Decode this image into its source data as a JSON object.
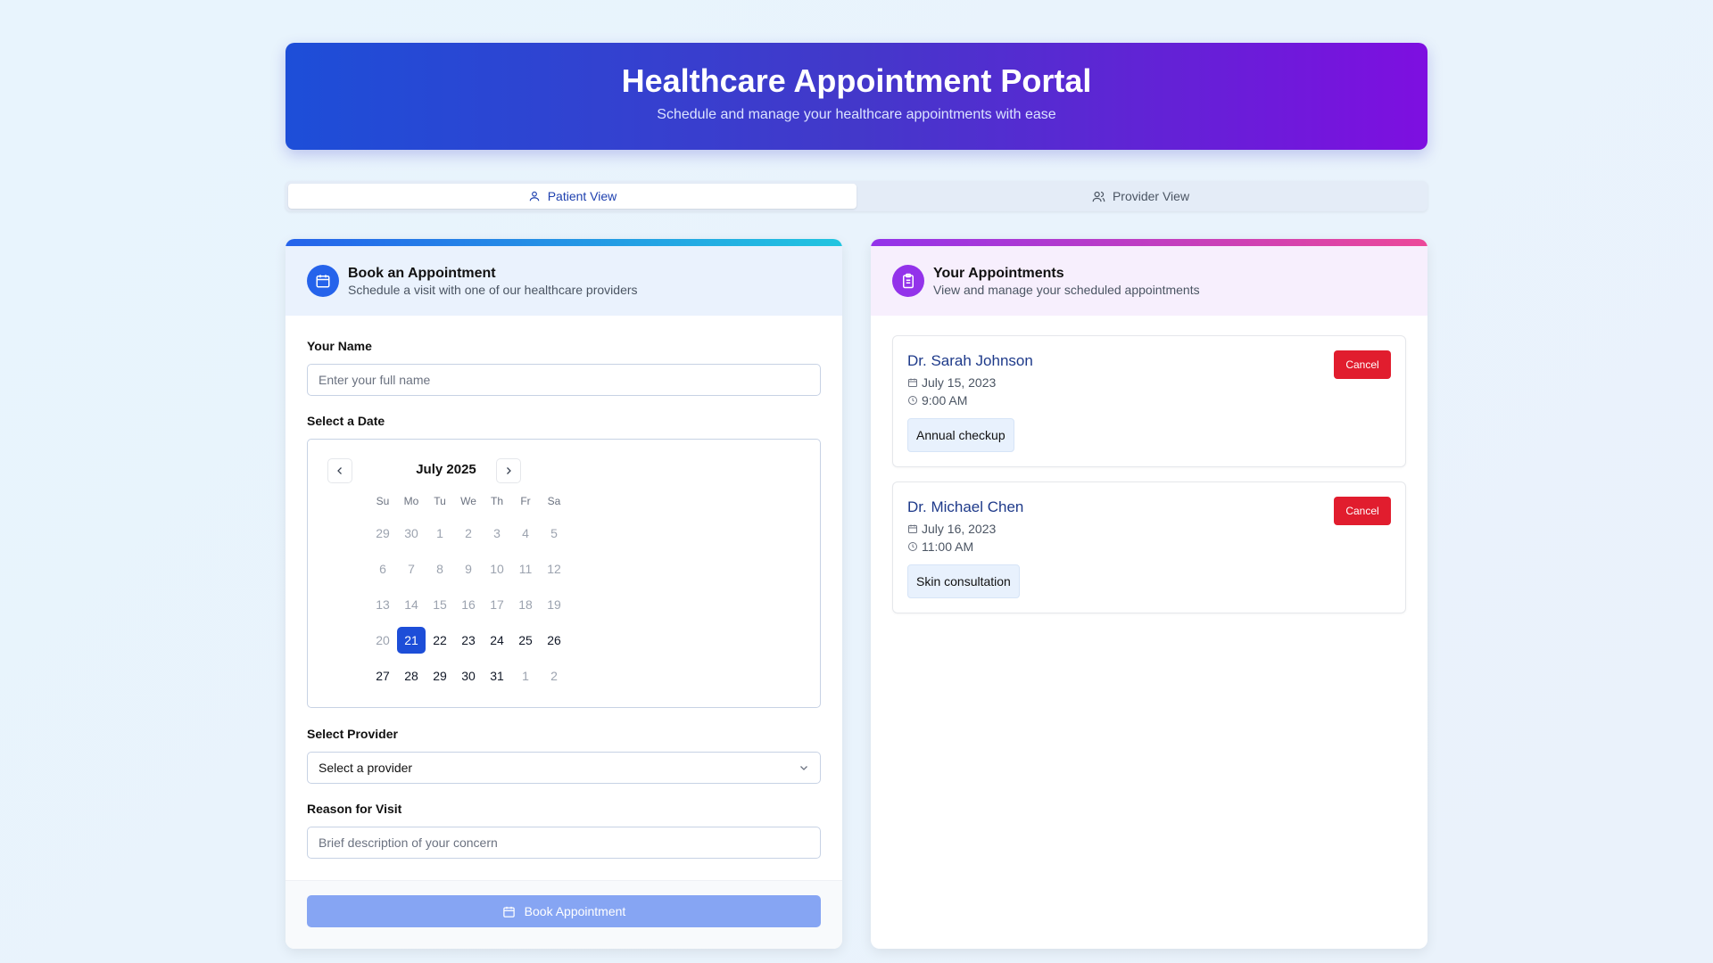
{
  "header": {
    "title": "Healthcare Appointment Portal",
    "subtitle": "Schedule and manage your healthcare appointments with ease"
  },
  "tabs": [
    {
      "label": "Patient View",
      "active": true,
      "icon": "user-icon"
    },
    {
      "label": "Provider View",
      "active": false,
      "icon": "users-icon"
    }
  ],
  "booking": {
    "title": "Book an Appointment",
    "subtitle": "Schedule a visit with one of our healthcare providers",
    "name_label": "Your Name",
    "name_placeholder": "Enter your full name",
    "name_value": "",
    "date_label": "Select a Date",
    "calendar": {
      "month": "July 2025",
      "weekdays": [
        "Su",
        "Mo",
        "Tu",
        "We",
        "Th",
        "Fr",
        "Sa"
      ],
      "weeks": [
        [
          "29",
          "30",
          "1",
          "2",
          "3",
          "4",
          "5"
        ],
        [
          "6",
          "7",
          "8",
          "9",
          "10",
          "11",
          "12"
        ],
        [
          "13",
          "14",
          "15",
          "16",
          "17",
          "18",
          "19"
        ],
        [
          "20",
          "21",
          "22",
          "23",
          "24",
          "25",
          "26"
        ],
        [
          "27",
          "28",
          "29",
          "30",
          "31",
          "1",
          "2"
        ]
      ],
      "selected": "21"
    },
    "provider_label": "Select Provider",
    "provider_value": "Select a provider",
    "reason_label": "Reason for Visit",
    "reason_placeholder": "Brief description of your concern",
    "submit_label": "Book Appointment"
  },
  "appointments": {
    "title": "Your Appointments",
    "subtitle": "View and manage your scheduled appointments",
    "items": [
      {
        "doctor": "Dr. Sarah Johnson",
        "date": "July 15, 2023",
        "time": "9:00 AM",
        "reason": "Annual checkup",
        "cancel_label": "Cancel"
      },
      {
        "doctor": "Dr. Michael Chen",
        "date": "July 16, 2023",
        "time": "11:00 AM",
        "reason": "Skin consultation",
        "cancel_label": "Cancel"
      }
    ]
  },
  "colors": {
    "primary": "#1d4ed8",
    "accent_purple": "#7e22ce",
    "danger": "#e11d2e"
  }
}
